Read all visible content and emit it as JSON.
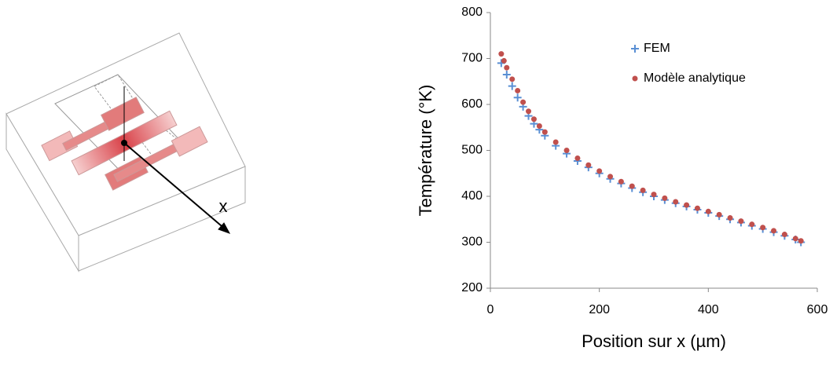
{
  "diagram": {
    "axis_label": "x"
  },
  "chart_data": {
    "type": "scatter",
    "x_label": "Position sur x (µm)",
    "y_label": "Température  (°K)",
    "xlim": [
      0,
      600
    ],
    "xticks": [
      0,
      200,
      400,
      600
    ],
    "ylim": [
      200,
      800
    ],
    "yticks": [
      200,
      300,
      400,
      500,
      600,
      700,
      800
    ],
    "grid": false,
    "legend": "upper right",
    "series": [
      {
        "name": "FEM",
        "color": "#5a8fd4",
        "marker": "plus",
        "x": [
          20,
          30,
          40,
          50,
          60,
          70,
          80,
          90,
          100,
          120,
          140,
          160,
          180,
          200,
          220,
          240,
          260,
          280,
          300,
          320,
          340,
          360,
          380,
          400,
          420,
          440,
          460,
          480,
          500,
          520,
          540,
          560,
          570
        ],
        "values": [
          690,
          665,
          640,
          615,
          595,
          575,
          558,
          545,
          532,
          510,
          493,
          477,
          463,
          450,
          438,
          428,
          418,
          409,
          400,
          392,
          385,
          378,
          371,
          364,
          357,
          350,
          343,
          336,
          329,
          322,
          314,
          306,
          300
        ]
      },
      {
        "name": "Modèle analytique",
        "color": "#c0504d",
        "marker": "circle",
        "x": [
          20,
          25,
          30,
          40,
          50,
          60,
          70,
          80,
          90,
          100,
          120,
          140,
          160,
          180,
          200,
          220,
          240,
          260,
          280,
          300,
          320,
          340,
          360,
          380,
          400,
          420,
          440,
          460,
          480,
          500,
          520,
          540,
          560,
          570
        ],
        "values": [
          710,
          695,
          680,
          655,
          630,
          605,
          585,
          568,
          553,
          540,
          518,
          500,
          483,
          468,
          455,
          443,
          432,
          422,
          413,
          404,
          396,
          388,
          381,
          374,
          367,
          360,
          353,
          346,
          339,
          332,
          325,
          317,
          308,
          303
        ]
      }
    ]
  }
}
